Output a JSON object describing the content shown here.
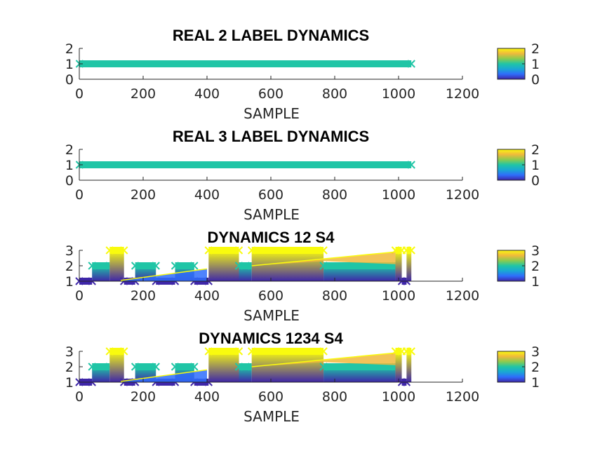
{
  "chart_data": [
    {
      "type": "scatter",
      "title": "REAL 2 LABEL DYNAMICS",
      "xlabel": "SAMPLE",
      "ylabel": "",
      "xlim": [
        0,
        1200
      ],
      "ylim": [
        0,
        2
      ],
      "xticks": [
        0,
        200,
        400,
        600,
        800,
        1000,
        1200
      ],
      "yticks": [
        0,
        1,
        2
      ],
      "colorbar": {
        "limits": [
          0,
          2
        ],
        "ticks": [
          0,
          1,
          2
        ]
      },
      "series": [
        {
          "segments": [
            {
              "x": [
                1,
                1040
              ],
              "y": 1
            }
          ]
        }
      ]
    },
    {
      "type": "scatter",
      "title": "REAL 3 LABEL DYNAMICS",
      "xlabel": "SAMPLE",
      "ylabel": "",
      "xlim": [
        0,
        1200
      ],
      "ylim": [
        0,
        2
      ],
      "xticks": [
        0,
        200,
        400,
        600,
        800,
        1000,
        1200
      ],
      "yticks": [
        0,
        1,
        2
      ],
      "colorbar": {
        "limits": [
          0,
          2
        ],
        "ticks": [
          0,
          1,
          2
        ]
      },
      "series": [
        {
          "segments": [
            {
              "x": [
                1,
                1040
              ],
              "y": 1
            }
          ]
        }
      ]
    },
    {
      "type": "scatter",
      "title": "DYNAMICS 12 S4",
      "xlabel": "SAMPLE",
      "ylabel": "",
      "xlim": [
        0,
        1200
      ],
      "ylim": [
        1,
        3
      ],
      "xticks": [
        0,
        200,
        400,
        600,
        800,
        1000,
        1200
      ],
      "yticks": [
        1,
        2,
        3
      ],
      "colorbar": {
        "limits": [
          1,
          3
        ],
        "ticks": [
          1,
          2,
          3
        ]
      },
      "series": [
        {
          "segments": [
            {
              "x": [
                0,
                40
              ],
              "y": 1
            },
            {
              "x": [
                40,
                95
              ],
              "y": 2
            },
            {
              "x": [
                95,
                140
              ],
              "y": 3
            },
            {
              "x": [
                140,
                175
              ],
              "y": 1
            },
            {
              "x": [
                175,
                240
              ],
              "y": 2
            },
            {
              "x": [
                240,
                300
              ],
              "y": 1
            },
            {
              "x": [
                300,
                360
              ],
              "y": 2
            },
            {
              "x": [
                360,
                405
              ],
              "y": 1
            },
            {
              "x": [
                405,
                500
              ],
              "y": 3
            },
            {
              "x": [
                500,
                540
              ],
              "y": 2
            },
            {
              "x": [
                540,
                765
              ],
              "y": 3
            },
            {
              "x": [
                765,
                990
              ],
              "y": 2
            },
            {
              "x": [
                990,
                1010
              ],
              "y": 3
            },
            {
              "x": [
                1010,
                1025
              ],
              "y": 1
            },
            {
              "x": [
                1025,
                1040
              ],
              "y": 3
            }
          ]
        }
      ]
    },
    {
      "type": "scatter",
      "title": "DYNAMICS 1234 S4",
      "xlabel": "SAMPLE",
      "ylabel": "",
      "xlim": [
        0,
        1200
      ],
      "ylim": [
        1,
        3
      ],
      "xticks": [
        0,
        200,
        400,
        600,
        800,
        1000,
        1200
      ],
      "yticks": [
        1,
        2,
        3
      ],
      "colorbar": {
        "limits": [
          1,
          3
        ],
        "ticks": [
          1,
          2,
          3
        ]
      },
      "series": [
        {
          "segments": [
            {
              "x": [
                0,
                40
              ],
              "y": 1
            },
            {
              "x": [
                40,
                95
              ],
              "y": 2
            },
            {
              "x": [
                95,
                140
              ],
              "y": 3
            },
            {
              "x": [
                140,
                175
              ],
              "y": 1
            },
            {
              "x": [
                175,
                240
              ],
              "y": 2
            },
            {
              "x": [
                240,
                300
              ],
              "y": 1
            },
            {
              "x": [
                300,
                360
              ],
              "y": 2
            },
            {
              "x": [
                360,
                405
              ],
              "y": 1
            },
            {
              "x": [
                405,
                500
              ],
              "y": 3
            },
            {
              "x": [
                500,
                540
              ],
              "y": 2
            },
            {
              "x": [
                540,
                765
              ],
              "y": 3
            },
            {
              "x": [
                765,
                990
              ],
              "y": 2
            },
            {
              "x": [
                990,
                1010
              ],
              "y": 3
            },
            {
              "x": [
                1010,
                1025
              ],
              "y": 1
            },
            {
              "x": [
                1025,
                1040
              ],
              "y": 3
            }
          ]
        }
      ]
    }
  ],
  "colormap": [
    "#3e26a8",
    "#2f6dfb",
    "#1aa8d3",
    "#20c5a6",
    "#8ccb4e",
    "#f0b93c",
    "#f9fb0e"
  ]
}
